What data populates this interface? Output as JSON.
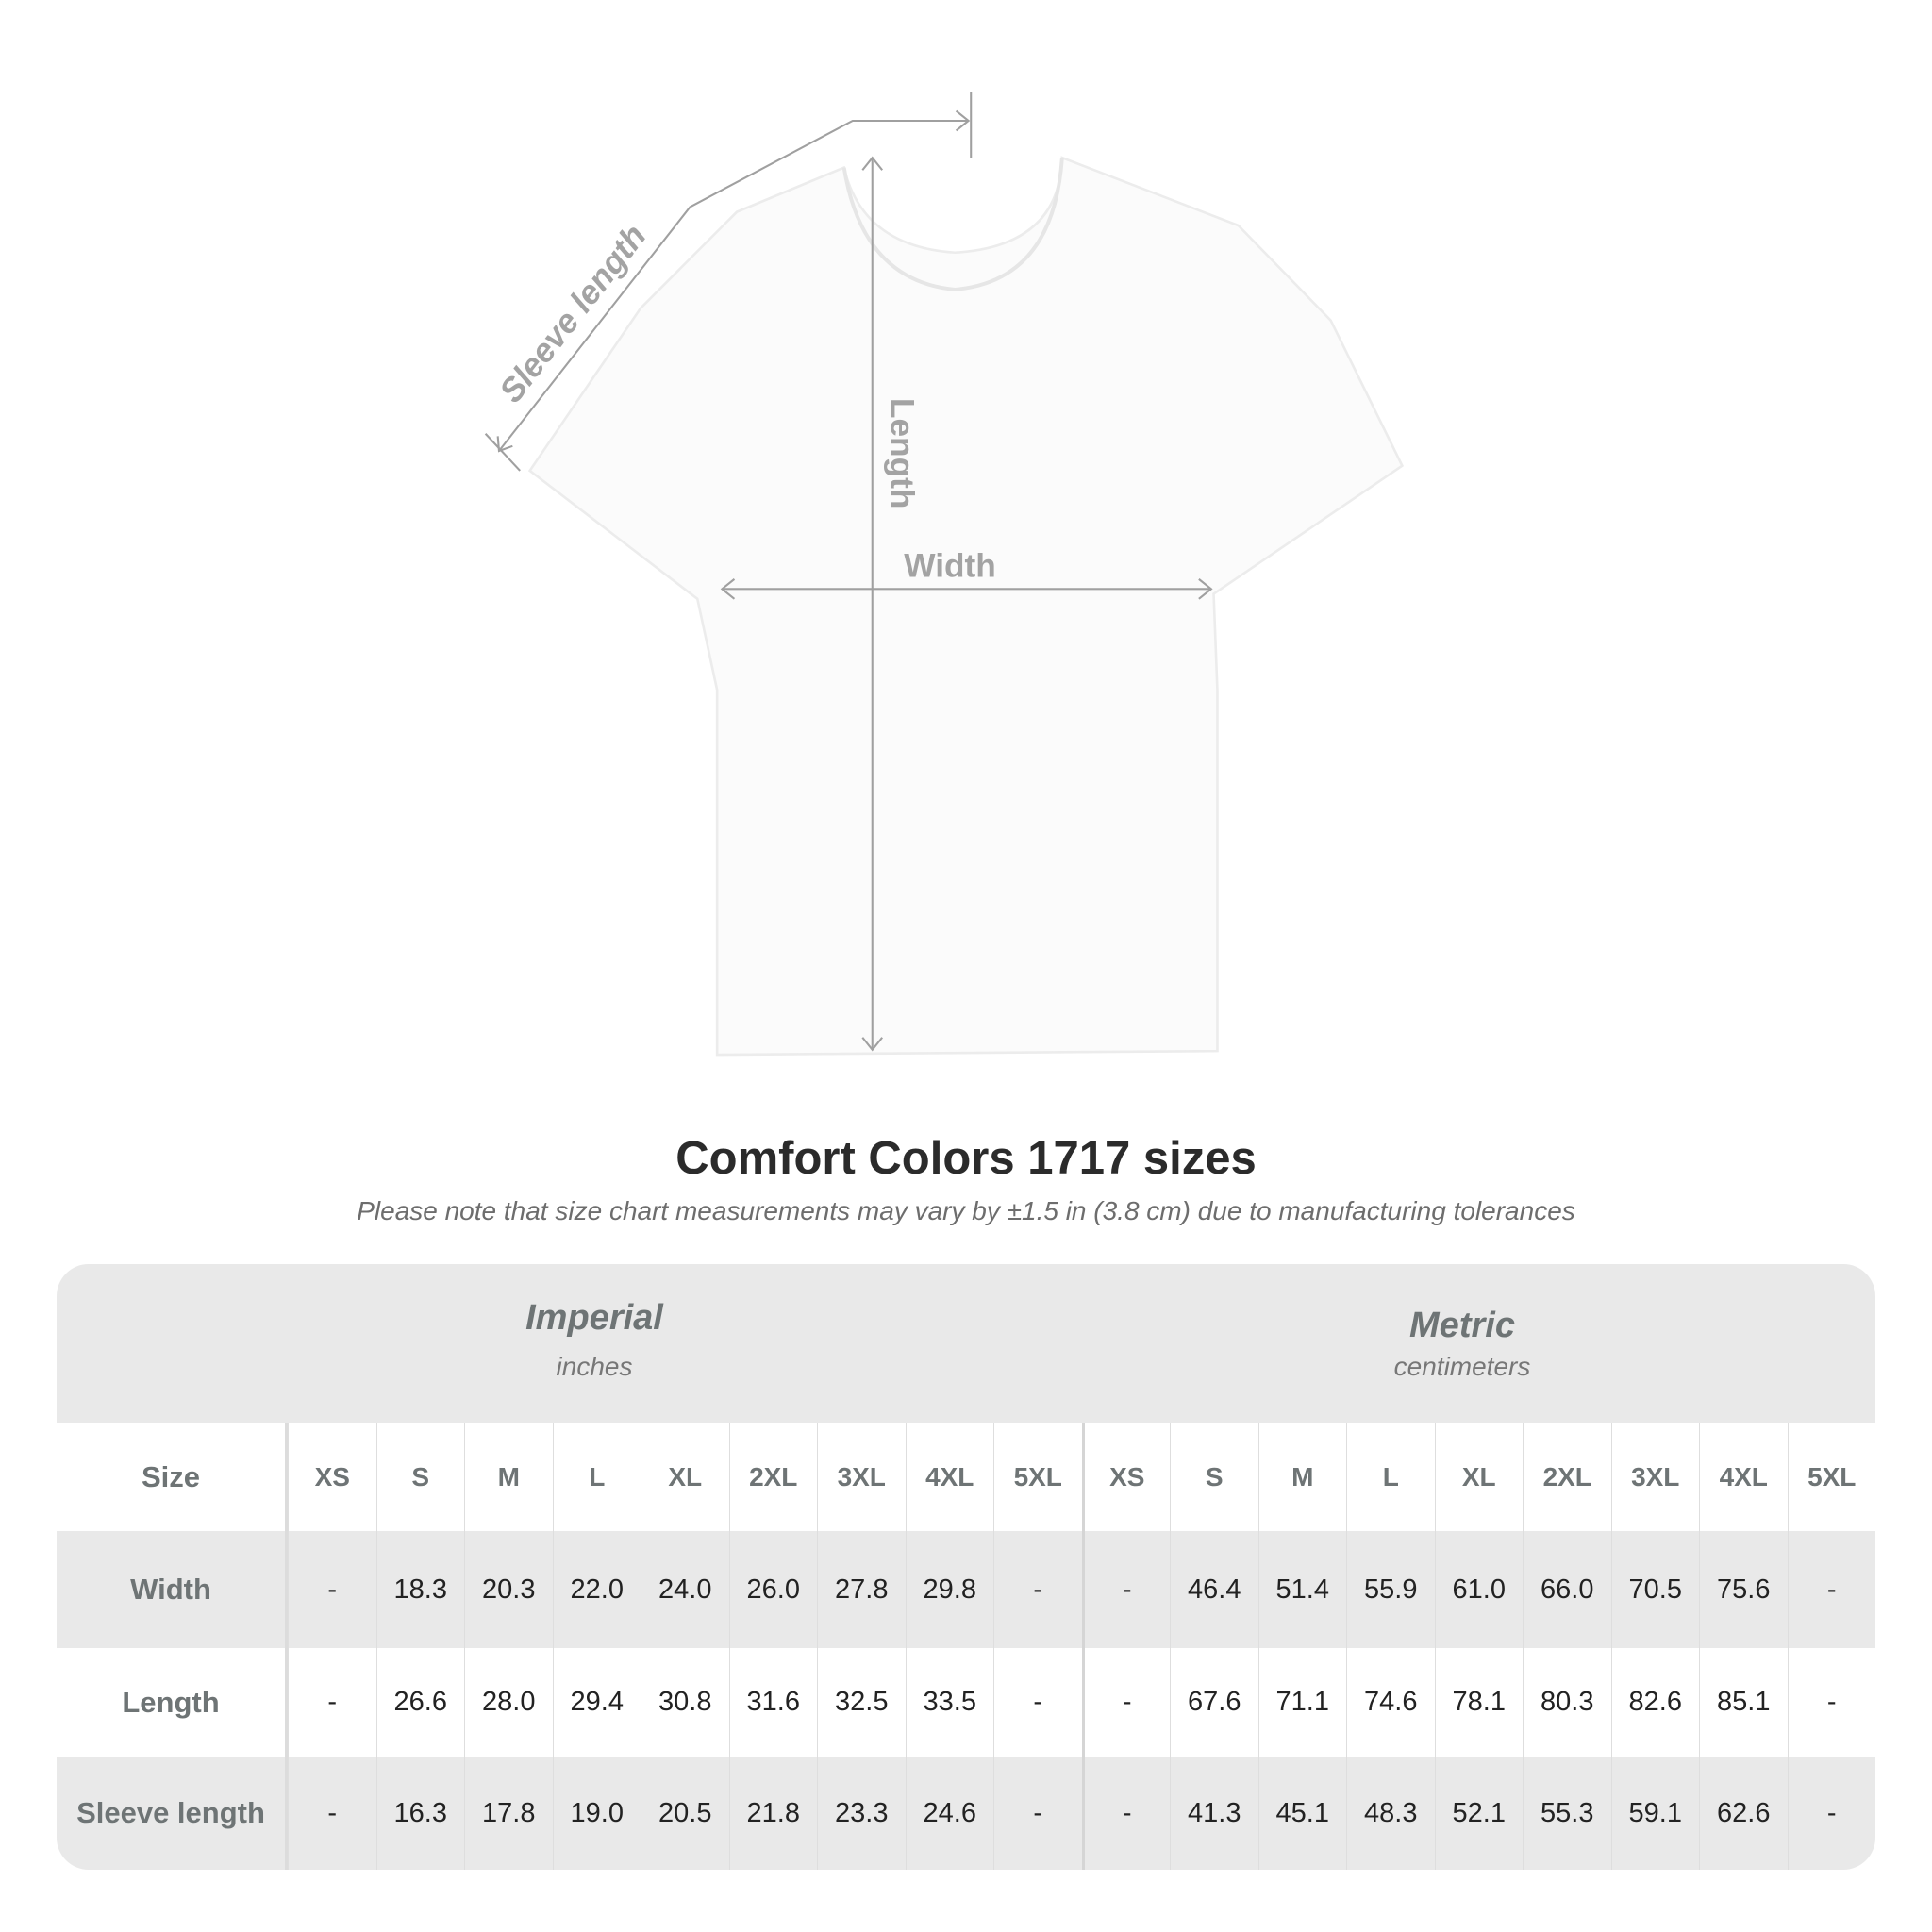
{
  "diagram": {
    "labels": {
      "sleeve": "Sleeve length",
      "length": "Length",
      "width": "Width"
    },
    "arrow_color": "#a0a0a0"
  },
  "header": {
    "title": "Comfort Colors 1717 sizes",
    "subtitle": "Please note that size chart measurements may vary by ±1.5 in (3.8 cm) due to manufacturing tolerances"
  },
  "table": {
    "imperial": {
      "name": "Imperial",
      "unit": "inches"
    },
    "metric": {
      "name": "Metric",
      "unit": "centimeters"
    },
    "size_label": "Size",
    "sizes": [
      "XS",
      "S",
      "M",
      "L",
      "XL",
      "2XL",
      "3XL",
      "4XL",
      "5XL"
    ],
    "rows": [
      {
        "label": "Width",
        "imperial": [
          "-",
          "18.3",
          "20.3",
          "22.0",
          "24.0",
          "26.0",
          "27.8",
          "29.8",
          "-"
        ],
        "metric": [
          "-",
          "46.4",
          "51.4",
          "55.9",
          "61.0",
          "66.0",
          "70.5",
          "75.6",
          "-"
        ]
      },
      {
        "label": "Length",
        "imperial": [
          "-",
          "26.6",
          "28.0",
          "29.4",
          "30.8",
          "31.6",
          "32.5",
          "33.5",
          "-"
        ],
        "metric": [
          "-",
          "67.6",
          "71.1",
          "74.6",
          "78.1",
          "80.3",
          "82.6",
          "85.1",
          "-"
        ]
      },
      {
        "label": "Sleeve length",
        "imperial": [
          "-",
          "16.3",
          "17.8",
          "19.0",
          "20.5",
          "21.8",
          "23.3",
          "24.6",
          "-"
        ],
        "metric": [
          "-",
          "41.3",
          "45.1",
          "48.3",
          "52.1",
          "55.3",
          "59.1",
          "62.6",
          "-"
        ]
      }
    ],
    "colors": {
      "band": "#e9e9e9",
      "label_text": "#6e7475"
    }
  }
}
